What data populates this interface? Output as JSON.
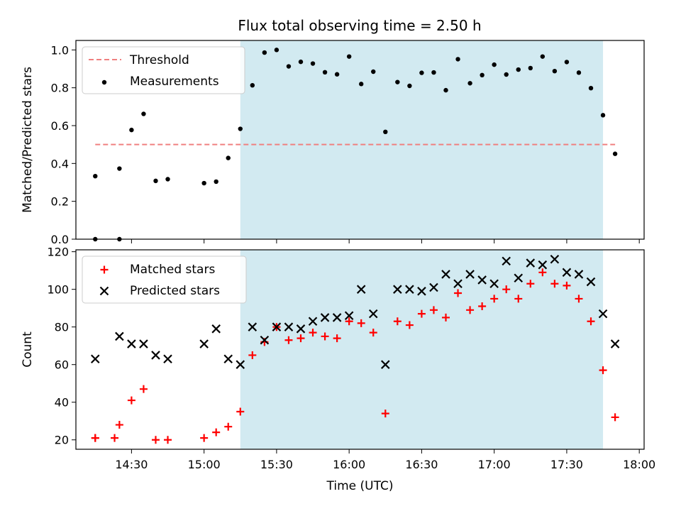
{
  "chart_data": [
    {
      "type": "scatter",
      "title": "Flux total observing time = 2.50 h",
      "ylabel": "Matched/Predicted stars",
      "xlim": [
        "14:07",
        "18:02"
      ],
      "ylim": [
        0.0,
        1.05
      ],
      "yticks": [
        "0.0",
        "0.2",
        "0.4",
        "0.6",
        "0.8",
        "1.0"
      ],
      "highlight_span": [
        "15:15",
        "17:45"
      ],
      "highlight_color": "#add8e6",
      "legend_position": "top-left",
      "threshold": {
        "name": "Threshold",
        "value": 0.5,
        "x_range": [
          "14:15",
          "17:50"
        ],
        "color": "#f08080"
      },
      "series": [
        {
          "name": "Measurements",
          "color": "#000000",
          "x": [
            "14:15",
            "14:15",
            "14:25",
            "14:25",
            "14:30",
            "14:35",
            "14:40",
            "14:45",
            "15:00",
            "15:05",
            "15:10",
            "15:15",
            "15:20",
            "15:25",
            "15:30",
            "15:35",
            "15:40",
            "15:45",
            "15:50",
            "15:55",
            "16:00",
            "16:05",
            "16:10",
            "16:15",
            "16:20",
            "16:25",
            "16:30",
            "16:35",
            "16:40",
            "16:45",
            "16:50",
            "16:55",
            "17:00",
            "17:05",
            "17:10",
            "17:15",
            "17:20",
            "17:25",
            "17:30",
            "17:35",
            "17:40",
            "17:45",
            "17:50"
          ],
          "y": [
            0.333,
            0.0,
            0.0,
            0.373,
            0.577,
            0.662,
            0.308,
            0.317,
            0.296,
            0.304,
            0.429,
            0.583,
            0.813,
            0.986,
            1.0,
            0.913,
            0.937,
            0.928,
            0.882,
            0.871,
            0.965,
            0.82,
            0.885,
            0.567,
            0.83,
            0.81,
            0.879,
            0.881,
            0.787,
            0.951,
            0.824,
            0.867,
            0.922,
            0.87,
            0.896,
            0.904,
            0.965,
            0.888,
            0.936,
            0.88,
            0.798,
            0.655,
            0.451
          ]
        }
      ]
    },
    {
      "type": "scatter",
      "xlabel": "Time (UTC)",
      "ylabel": "Count",
      "xlim": [
        "14:07",
        "18:02"
      ],
      "ylim": [
        15,
        121
      ],
      "xticks": [
        "14:30",
        "15:00",
        "15:30",
        "16:00",
        "16:30",
        "17:00",
        "17:30",
        "18:00"
      ],
      "yticks": [
        "20",
        "40",
        "60",
        "80",
        "100",
        "120"
      ],
      "highlight_span": [
        "15:15",
        "17:45"
      ],
      "highlight_color": "#add8e6",
      "legend_position": "top-left",
      "series": [
        {
          "name": "Matched stars",
          "marker": "+",
          "color": "#ff0000",
          "x": [
            "14:15",
            "14:15",
            "14:23",
            "14:25",
            "14:30",
            "14:35",
            "14:40",
            "14:45",
            "15:00",
            "15:05",
            "15:10",
            "15:15",
            "15:20",
            "15:25",
            "15:30",
            "15:35",
            "15:40",
            "15:45",
            "15:50",
            "15:55",
            "16:00",
            "16:05",
            "16:10",
            "16:15",
            "16:20",
            "16:25",
            "16:30",
            "16:35",
            "16:40",
            "16:45",
            "16:50",
            "16:55",
            "17:00",
            "17:05",
            "17:10",
            "17:15",
            "17:20",
            "17:25",
            "17:30",
            "17:35",
            "17:40",
            "17:45",
            "17:50"
          ],
          "y": [
            21,
            21,
            21,
            28,
            41,
            47,
            20,
            20,
            21,
            24,
            27,
            35,
            65,
            72,
            80,
            73,
            74,
            77,
            75,
            74,
            83,
            82,
            77,
            34,
            83,
            81,
            87,
            89,
            85,
            98,
            89,
            91,
            95,
            100,
            95,
            103,
            109,
            103,
            102,
            95,
            83,
            57,
            32
          ]
        },
        {
          "name": "Predicted stars",
          "marker": "x",
          "color": "#000000",
          "x": [
            "14:15",
            "14:25",
            "14:30",
            "14:35",
            "14:40",
            "14:45",
            "15:00",
            "15:05",
            "15:10",
            "15:15",
            "15:20",
            "15:25",
            "15:30",
            "15:35",
            "15:40",
            "15:45",
            "15:50",
            "15:55",
            "16:00",
            "16:05",
            "16:10",
            "16:15",
            "16:20",
            "16:25",
            "16:30",
            "16:35",
            "16:40",
            "16:45",
            "16:50",
            "16:55",
            "17:00",
            "17:05",
            "17:10",
            "17:15",
            "17:20",
            "17:25",
            "17:30",
            "17:35",
            "17:40",
            "17:45",
            "17:50"
          ],
          "y": [
            63,
            75,
            71,
            71,
            65,
            63,
            71,
            79,
            63,
            60,
            80,
            73,
            80,
            80,
            79,
            83,
            85,
            85,
            86,
            100,
            87,
            60,
            100,
            100,
            99,
            101,
            108,
            103,
            108,
            105,
            103,
            115,
            106,
            114,
            113,
            116,
            109,
            108,
            104,
            87,
            71
          ]
        }
      ]
    }
  ]
}
